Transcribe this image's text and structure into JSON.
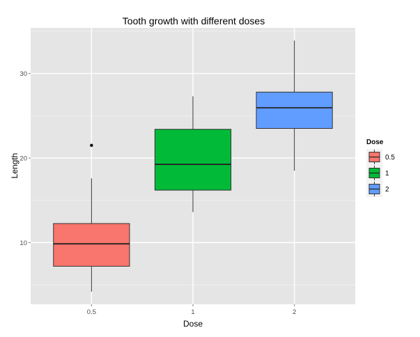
{
  "chart_data": {
    "type": "box",
    "title": "Tooth growth with different doses",
    "xlabel": "Dose",
    "ylabel": "Length",
    "categories": [
      "0.5",
      "1",
      "2"
    ],
    "y_ticks": [
      10,
      20,
      30
    ],
    "ylim": [
      2.7,
      35.4
    ],
    "grid": true,
    "legend": {
      "title": "Dose",
      "position": "right",
      "entries": [
        "0.5",
        "1",
        "2"
      ]
    },
    "colors": [
      "#F8766D",
      "#00BA38",
      "#619CFF"
    ],
    "boxes": [
      {
        "category": "0.5",
        "whisker_low": 4.2,
        "q1": 7.2,
        "median": 9.85,
        "q3": 12.25,
        "whisker_high": 17.6,
        "outliers": [
          21.5
        ]
      },
      {
        "category": "1",
        "whisker_low": 13.6,
        "q1": 16.2,
        "median": 19.25,
        "q3": 23.4,
        "whisker_high": 27.3,
        "outliers": []
      },
      {
        "category": "2",
        "whisker_low": 18.5,
        "q1": 23.5,
        "median": 25.95,
        "q3": 27.8,
        "whisker_high": 33.9,
        "outliers": []
      }
    ]
  }
}
